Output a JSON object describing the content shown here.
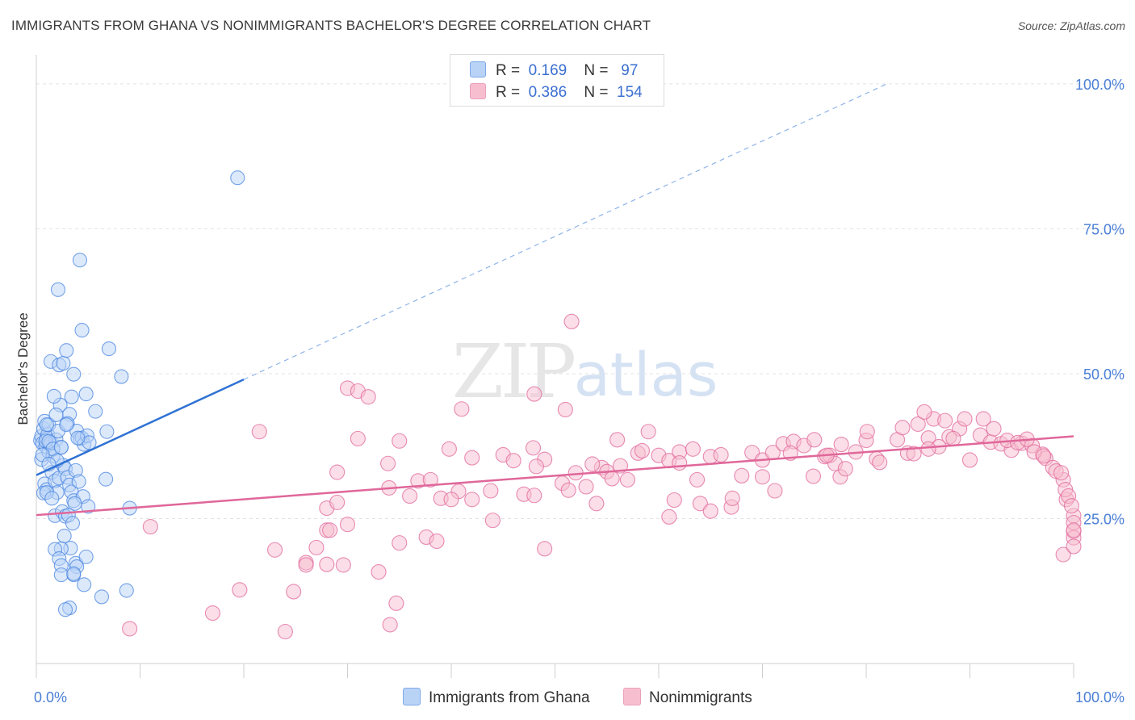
{
  "title": "IMMIGRANTS FROM GHANA VS NONIMMIGRANTS BACHELOR'S DEGREE CORRELATION CHART",
  "source": "Source: ZipAtlas.com",
  "watermark": {
    "zip": "ZIP",
    "atlas": "atlas"
  },
  "legend_top": [
    {
      "r_label": "R =",
      "r_value": "0.169",
      "n_label": "N =",
      "n_value": "97",
      "color": "#b9d3f7"
    },
    {
      "r_label": "R =",
      "r_value": "0.386",
      "n_label": "N =",
      "n_value": "154",
      "color": "#f7bed0"
    }
  ],
  "legend_bottom": [
    {
      "label": "Immigrants from Ghana",
      "color": "#b9d3f7"
    },
    {
      "label": "Nonimmigrants",
      "color": "#f7bed0"
    }
  ],
  "chart_data": {
    "type": "scatter",
    "title": "IMMIGRANTS FROM GHANA VS NONIMMIGRANTS BACHELOR'S DEGREE CORRELATION CHART",
    "xlabel": "",
    "ylabel": "Bachelor's Degree",
    "xlim": [
      0,
      100
    ],
    "ylim": [
      0,
      105
    ],
    "x_ticks": [
      "0.0%",
      "100.0%"
    ],
    "y_ticks": [
      {
        "value": 25,
        "label": "25.0%"
      },
      {
        "value": 50,
        "label": "50.0%"
      },
      {
        "value": 75,
        "label": "75.0%"
      },
      {
        "value": 100,
        "label": "100.0%"
      }
    ],
    "grid": true,
    "legend_placement": "top-center",
    "series": [
      {
        "name": "Immigrants from Ghana",
        "color": "#4a86e0",
        "fill": "#b9d3f7",
        "trend": {
          "x": [
            0,
            20
          ],
          "y": [
            32.5,
            49
          ],
          "extended_to": [
            82,
            100
          ]
        },
        "points": [
          [
            0.4,
            38.5
          ],
          [
            0.5,
            39.2
          ],
          [
            0.6,
            38
          ],
          [
            0.7,
            40.5
          ],
          [
            0.8,
            41.8
          ],
          [
            0.9,
            37.5
          ],
          [
            1.0,
            38.8
          ],
          [
            1.1,
            39.5
          ],
          [
            1.2,
            41.2
          ],
          [
            1.3,
            37.8
          ],
          [
            0.5,
            35.2
          ],
          [
            0.8,
            31
          ],
          [
            1.0,
            30
          ],
          [
            1.2,
            36.5
          ],
          [
            1.4,
            38.1
          ],
          [
            0.7,
            29.4
          ],
          [
            1.5,
            33
          ],
          [
            1.8,
            31.5
          ],
          [
            2.0,
            29.5
          ],
          [
            2.2,
            32
          ],
          [
            1.6,
            35.8
          ],
          [
            1.9,
            38.6
          ],
          [
            2.1,
            40.1
          ],
          [
            2.4,
            37.3
          ],
          [
            2.6,
            34.2
          ],
          [
            2.8,
            33.6
          ],
          [
            3.0,
            32.1
          ],
          [
            3.2,
            30.8
          ],
          [
            3.4,
            29.6
          ],
          [
            3.6,
            28.1
          ],
          [
            2.3,
            44.6
          ],
          [
            1.7,
            46.1
          ],
          [
            1.4,
            52.1
          ],
          [
            2.2,
            51.5
          ],
          [
            2.6,
            51.8
          ],
          [
            3.4,
            46
          ],
          [
            3.2,
            43
          ],
          [
            3.0,
            41.4
          ],
          [
            3.9,
            40.1
          ],
          [
            4.2,
            38.8
          ],
          [
            4.4,
            38.9
          ],
          [
            4.6,
            37.8
          ],
          [
            4.9,
            39.3
          ],
          [
            5.1,
            38.1
          ],
          [
            3.8,
            33.3
          ],
          [
            4.1,
            31.4
          ],
          [
            4.5,
            28.8
          ],
          [
            5.0,
            27.1
          ],
          [
            3.7,
            27.6
          ],
          [
            1.8,
            25.5
          ],
          [
            2.5,
            26.2
          ],
          [
            2.8,
            25.4
          ],
          [
            3.1,
            25.6
          ],
          [
            3.5,
            24.2
          ],
          [
            2.7,
            22
          ],
          [
            3.3,
            19.9
          ],
          [
            2.4,
            19.8
          ],
          [
            1.8,
            19.7
          ],
          [
            2.2,
            18.1
          ],
          [
            2.4,
            16.9
          ],
          [
            3.8,
            17.3
          ],
          [
            3.9,
            16.7
          ],
          [
            3.6,
            15.3
          ],
          [
            2.4,
            15.3
          ],
          [
            4.8,
            18.4
          ],
          [
            4.6,
            13.6
          ],
          [
            3.2,
            9.6
          ],
          [
            2.8,
            9.3
          ],
          [
            6.3,
            11.5
          ],
          [
            8.7,
            12.6
          ],
          [
            3.6,
            15.5
          ],
          [
            1.0,
            29.5
          ],
          [
            1.5,
            28.5
          ],
          [
            6.7,
            31.8
          ],
          [
            9.0,
            26.8
          ],
          [
            6.8,
            40
          ],
          [
            8.2,
            49.5
          ],
          [
            7.0,
            54.3
          ],
          [
            2.9,
            54
          ],
          [
            4.4,
            57.5
          ],
          [
            2.1,
            64.5
          ],
          [
            4.2,
            69.6
          ],
          [
            19.4,
            83.8
          ],
          [
            1.0,
            41.2
          ],
          [
            1.9,
            42.9
          ],
          [
            0.9,
            38.4
          ],
          [
            1.2,
            38.3
          ],
          [
            1.6,
            37
          ],
          [
            2.0,
            35
          ],
          [
            2.9,
            41.2
          ],
          [
            4.0,
            38.9
          ],
          [
            4.8,
            46.5
          ],
          [
            3.6,
            49.9
          ],
          [
            2.4,
            37.3
          ],
          [
            5.7,
            43.5
          ],
          [
            0.6,
            36
          ],
          [
            1.2,
            34.4
          ]
        ]
      },
      {
        "name": "Nonimmigrants",
        "color": "#e0679a",
        "fill": "#f7bed0",
        "trend": {
          "x": [
            0,
            100
          ],
          "y": [
            25.6,
            39.2
          ]
        },
        "points": [
          [
            9,
            6
          ],
          [
            11,
            23.6
          ],
          [
            17,
            8.7
          ],
          [
            19.6,
            12.7
          ],
          [
            21.5,
            40
          ],
          [
            23,
            19.6
          ],
          [
            26,
            17.4
          ],
          [
            28,
            26.8
          ],
          [
            24,
            5.5
          ],
          [
            24.8,
            12.4
          ],
          [
            26,
            17
          ],
          [
            27,
            20
          ],
          [
            28,
            23
          ],
          [
            29,
            33
          ],
          [
            29.6,
            17
          ],
          [
            31,
            38.8
          ],
          [
            28,
            17.1
          ],
          [
            28.3,
            23
          ],
          [
            30,
            24
          ],
          [
            29,
            27.8
          ],
          [
            34,
            30.3
          ],
          [
            35,
            38.4
          ],
          [
            33,
            15.8
          ],
          [
            30,
            47.5
          ],
          [
            31,
            47
          ],
          [
            32,
            46
          ],
          [
            33.9,
            34.5
          ],
          [
            34.1,
            6.7
          ],
          [
            36,
            28.9
          ],
          [
            36.8,
            31.5
          ],
          [
            35,
            20.8
          ],
          [
            34.7,
            10.4
          ],
          [
            37.6,
            21.8
          ],
          [
            38,
            31.7
          ],
          [
            38.6,
            21.1
          ],
          [
            39,
            28.5
          ],
          [
            40.7,
            29.7
          ],
          [
            42,
            35.5
          ],
          [
            39.8,
            37
          ],
          [
            40,
            28.3
          ],
          [
            41,
            43.9
          ],
          [
            42,
            28.3
          ],
          [
            43.8,
            29.8
          ],
          [
            44,
            24.7
          ],
          [
            45,
            36
          ],
          [
            46,
            35
          ],
          [
            47,
            29.2
          ],
          [
            47.9,
            37.2
          ],
          [
            48,
            29
          ],
          [
            49,
            35.2
          ],
          [
            48,
            46.5
          ],
          [
            48.2,
            34
          ],
          [
            49,
            19.8
          ],
          [
            50.7,
            31.1
          ],
          [
            51.3,
            29.9
          ],
          [
            51,
            43.8
          ],
          [
            51.6,
            59
          ],
          [
            52,
            32.9
          ],
          [
            53,
            30.5
          ],
          [
            54,
            27.6
          ],
          [
            54.5,
            33.8
          ],
          [
            55,
            33.1
          ],
          [
            56.3,
            34.1
          ],
          [
            56,
            38.6
          ],
          [
            57,
            31.7
          ],
          [
            58,
            36.3
          ],
          [
            59,
            40
          ],
          [
            60,
            35.9
          ],
          [
            61,
            35
          ],
          [
            61,
            25.3
          ],
          [
            61.5,
            28.2
          ],
          [
            62,
            36.5
          ],
          [
            62,
            34.6
          ],
          [
            63.3,
            37
          ],
          [
            63.7,
            31.7
          ],
          [
            64,
            27.6
          ],
          [
            65,
            26.3
          ],
          [
            65,
            35.7
          ],
          [
            66,
            36
          ],
          [
            67,
            27
          ],
          [
            67.1,
            28.5
          ],
          [
            68,
            32.4
          ],
          [
            69,
            36.4
          ],
          [
            70,
            32.2
          ],
          [
            70,
            35.1
          ],
          [
            71,
            36.4
          ],
          [
            72,
            37.9
          ],
          [
            73,
            38.3
          ],
          [
            74,
            37.6
          ],
          [
            74.9,
            32.3
          ],
          [
            75,
            38.6
          ],
          [
            76,
            35.7
          ],
          [
            76.5,
            35.9
          ],
          [
            77,
            34.5
          ],
          [
            77.5,
            32.2
          ],
          [
            78,
            33.6
          ],
          [
            79,
            36.5
          ],
          [
            80,
            38.5
          ],
          [
            81,
            35.3
          ],
          [
            81.3,
            34.7
          ],
          [
            83,
            38.6
          ],
          [
            84,
            36.3
          ],
          [
            84.6,
            36.2
          ],
          [
            85,
            41.3
          ],
          [
            86,
            38.9
          ],
          [
            86.5,
            42.2
          ],
          [
            87,
            37.4
          ],
          [
            88,
            39.1
          ],
          [
            89,
            40.5
          ],
          [
            90,
            35.1
          ],
          [
            91,
            39.4
          ],
          [
            92,
            38.2
          ],
          [
            93,
            37.9
          ],
          [
            94,
            36.8
          ],
          [
            95,
            38
          ],
          [
            96,
            37.6
          ],
          [
            97,
            36.1
          ],
          [
            97.3,
            35.4
          ],
          [
            98,
            33.8
          ],
          [
            99,
            31.7
          ],
          [
            99,
            18.8
          ],
          [
            99.3,
            28.3
          ],
          [
            100,
            25.5
          ],
          [
            100,
            22.8
          ],
          [
            100,
            21.7
          ],
          [
            100,
            20.2
          ],
          [
            77.6,
            37.8
          ],
          [
            80.1,
            40
          ],
          [
            83.5,
            40.7
          ],
          [
            85.6,
            43.4
          ],
          [
            86,
            37
          ],
          [
            87.6,
            41.9
          ],
          [
            88.4,
            38.8
          ],
          [
            89.5,
            42.2
          ],
          [
            91.3,
            42.2
          ],
          [
            92.3,
            40.5
          ],
          [
            93.6,
            38.5
          ],
          [
            94.6,
            38.1
          ],
          [
            95.5,
            38.7
          ],
          [
            96.2,
            36.5
          ],
          [
            97.1,
            35.8
          ],
          [
            98.3,
            33.2
          ],
          [
            98.8,
            32.9
          ],
          [
            99.2,
            30
          ],
          [
            99.5,
            28.9
          ],
          [
            99.8,
            27.2
          ],
          [
            100,
            24.3
          ],
          [
            100,
            23
          ],
          [
            53.6,
            34.4
          ],
          [
            58.4,
            36.7
          ],
          [
            55.5,
            31.9
          ],
          [
            71.2,
            29.8
          ],
          [
            76.2,
            35.9
          ],
          [
            72.7,
            36.3
          ]
        ]
      }
    ]
  }
}
